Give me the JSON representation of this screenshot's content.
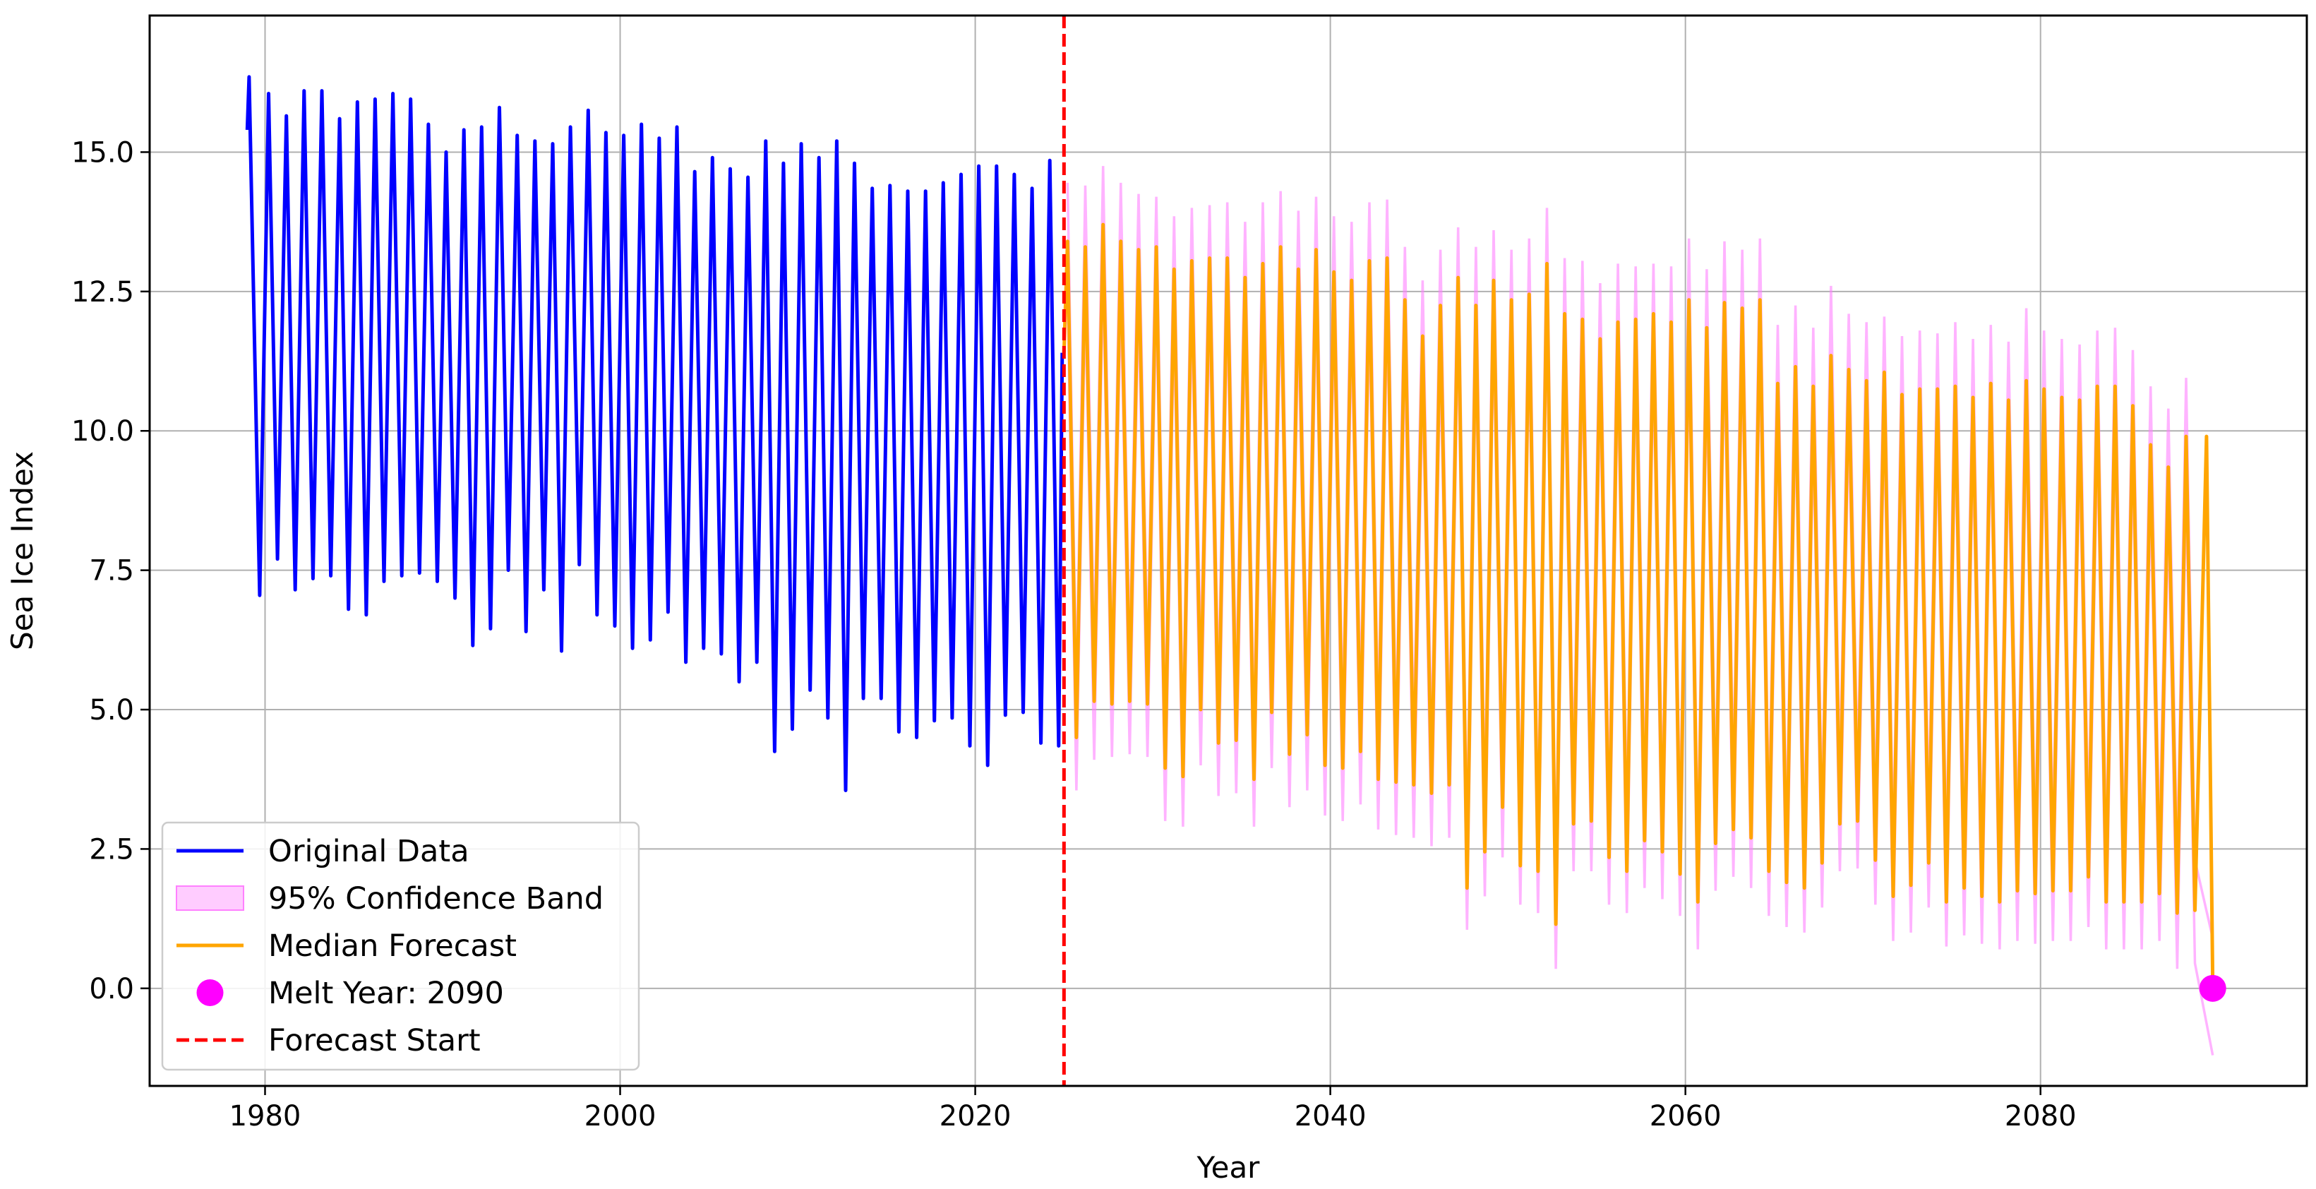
{
  "chart_data": {
    "type": "line",
    "xlabel": "Year",
    "ylabel": "Sea Ice Index",
    "xlim": [
      1973.5,
      2095
    ],
    "ylim": [
      -1.75,
      17.45
    ],
    "grid": true,
    "legend_position": "lower-left",
    "x_ticks": [
      1980,
      2000,
      2020,
      2040,
      2060,
      2080
    ],
    "x_tick_labels": [
      "1980",
      "2000",
      "2020",
      "2040",
      "2060",
      "2080"
    ],
    "y_ticks": [
      0.0,
      2.5,
      5.0,
      7.5,
      10.0,
      12.5,
      15.0
    ],
    "y_tick_labels": [
      "0.0",
      "2.5",
      "5.0",
      "7.5",
      "10.0",
      "12.5",
      "15.0"
    ],
    "colors": {
      "original": "#0000ff",
      "forecast": "#ffa500",
      "band": "#ff80ff",
      "melt": "#ff00ff",
      "forecast_start": "#ff0000"
    },
    "legend": [
      {
        "label": "Original Data",
        "kind": "line",
        "color": "#0000ff"
      },
      {
        "label": "95% Confidence Band",
        "kind": "patch",
        "color": "#ff80ff"
      },
      {
        "label": "Median Forecast",
        "kind": "line",
        "color": "#ffa500"
      },
      {
        "label": "Melt Year: 2090",
        "kind": "marker",
        "color": "#ff00ff"
      },
      {
        "label": "Forecast Start",
        "kind": "dashed",
        "color": "#ff0000"
      }
    ],
    "forecast_start_x": 2025.0,
    "melt_point": {
      "x": 2089.7,
      "y": 0.0
    },
    "series": [
      {
        "name": "Original Data",
        "annual_extremes": {
          "years": [
            1979,
            1980,
            1981,
            1982,
            1983,
            1984,
            1985,
            1986,
            1987,
            1988,
            1989,
            1990,
            1991,
            1992,
            1993,
            1994,
            1995,
            1996,
            1997,
            1998,
            1999,
            2000,
            2001,
            2002,
            2003,
            2004,
            2005,
            2006,
            2007,
            2008,
            2009,
            2010,
            2011,
            2012,
            2013,
            2014,
            2015,
            2016,
            2017,
            2018,
            2019,
            2020,
            2021,
            2022,
            2023,
            2024
          ],
          "max": [
            16.35,
            16.05,
            15.65,
            16.1,
            16.1,
            15.6,
            15.9,
            15.95,
            16.05,
            15.95,
            15.5,
            15.0,
            15.4,
            15.45,
            15.8,
            15.3,
            15.2,
            15.15,
            15.45,
            15.75,
            15.35,
            15.3,
            15.5,
            15.25,
            15.45,
            14.65,
            14.9,
            14.7,
            14.55,
            15.2,
            14.8,
            15.15,
            14.9,
            15.2,
            14.8,
            14.35,
            14.4,
            14.3,
            14.3,
            14.45,
            14.6,
            14.75,
            14.75,
            14.6,
            14.35,
            14.85
          ],
          "min": [
            7.05,
            7.7,
            7.15,
            7.35,
            7.4,
            6.8,
            6.7,
            7.3,
            7.4,
            7.45,
            7.3,
            7.0,
            6.15,
            6.45,
            7.5,
            6.4,
            7.15,
            6.05,
            7.6,
            6.7,
            6.5,
            6.1,
            6.25,
            6.75,
            5.85,
            6.1,
            6.0,
            5.5,
            5.85,
            4.25,
            4.65,
            5.35,
            4.85,
            3.55,
            5.2,
            5.2,
            4.6,
            4.5,
            4.8,
            4.85,
            4.35,
            4.0,
            4.9,
            4.95,
            4.4,
            4.35
          ]
        }
      },
      {
        "name": "Median Forecast",
        "annual_extremes": {
          "years": [
            2026,
            2027,
            2028,
            2029,
            2030,
            2031,
            2032,
            2033,
            2034,
            2035,
            2036,
            2037,
            2038,
            2039,
            2040,
            2041,
            2042,
            2043,
            2044,
            2045,
            2046,
            2047,
            2048,
            2049,
            2050,
            2051,
            2052,
            2053,
            2054,
            2055,
            2056,
            2057,
            2058,
            2059,
            2060,
            2061,
            2062,
            2063,
            2064,
            2065,
            2066,
            2067,
            2068,
            2069,
            2070,
            2071,
            2072,
            2073,
            2074,
            2075,
            2076,
            2077,
            2078,
            2079,
            2080,
            2081,
            2082,
            2083,
            2084,
            2085,
            2086,
            2087,
            2088,
            2089
          ],
          "max": [
            13.4,
            13.3,
            13.7,
            13.4,
            13.25,
            13.3,
            12.9,
            13.05,
            13.1,
            13.1,
            12.75,
            13.0,
            13.3,
            12.9,
            13.25,
            12.85,
            12.7,
            13.05,
            13.1,
            12.35,
            11.7,
            12.25,
            12.75,
            12.25,
            12.7,
            12.35,
            12.45,
            13.0,
            12.1,
            12.0,
            11.65,
            11.95,
            12.0,
            12.1,
            11.95,
            12.35,
            11.85,
            12.3,
            12.2,
            12.35,
            10.85,
            11.15,
            10.8,
            11.35,
            11.1,
            10.9,
            11.05,
            10.65,
            10.75,
            10.75,
            10.8,
            10.6,
            10.85,
            10.55,
            10.9,
            10.75,
            10.6,
            10.55,
            10.8,
            10.8,
            10.45,
            9.75,
            9.35,
            9.9
          ],
          "min": [
            4.5,
            5.15,
            5.1,
            5.15,
            5.1,
            3.95,
            3.8,
            5.0,
            4.4,
            4.45,
            3.75,
            4.95,
            4.2,
            4.55,
            4.0,
            3.95,
            4.25,
            3.75,
            3.7,
            3.65,
            3.5,
            3.65,
            1.8,
            2.45,
            3.25,
            2.2,
            2.1,
            1.15,
            2.95,
            3.0,
            2.35,
            2.1,
            2.65,
            2.45,
            2.05,
            1.55,
            2.6,
            2.85,
            2.7,
            2.1,
            1.9,
            1.8,
            2.25,
            2.95,
            3.0,
            2.3,
            1.65,
            1.85,
            2.25,
            1.55,
            1.8,
            1.65,
            1.55,
            1.75,
            1.7,
            1.75,
            1.75,
            2.0,
            1.55,
            1.55,
            1.55,
            1.7,
            1.35,
            1.4
          ]
        },
        "end_point": {
          "x": 2089.7,
          "y": 0.1
        }
      },
      {
        "name": "95% Confidence Band",
        "annual_extremes": {
          "years": [
            2026,
            2027,
            2028,
            2029,
            2030,
            2031,
            2032,
            2033,
            2034,
            2035,
            2036,
            2037,
            2038,
            2039,
            2040,
            2041,
            2042,
            2043,
            2044,
            2045,
            2046,
            2047,
            2048,
            2049,
            2050,
            2051,
            2052,
            2053,
            2054,
            2055,
            2056,
            2057,
            2058,
            2059,
            2060,
            2061,
            2062,
            2063,
            2064,
            2065,
            2066,
            2067,
            2068,
            2069,
            2070,
            2071,
            2072,
            2073,
            2074,
            2075,
            2076,
            2077,
            2078,
            2079,
            2080,
            2081,
            2082,
            2083,
            2084,
            2085,
            2086,
            2087,
            2088,
            2089
          ],
          "upper": [
            14.45,
            14.4,
            14.75,
            14.45,
            14.25,
            14.2,
            13.85,
            14.0,
            14.05,
            14.1,
            13.75,
            14.1,
            14.3,
            13.95,
            14.2,
            13.85,
            13.75,
            14.1,
            14.15,
            13.3,
            12.7,
            13.25,
            13.65,
            13.3,
            13.6,
            13.25,
            13.45,
            14.0,
            13.1,
            13.05,
            12.65,
            13.0,
            12.95,
            13.0,
            12.95,
            13.45,
            12.9,
            13.4,
            13.25,
            13.45,
            11.9,
            12.25,
            11.85,
            12.6,
            12.1,
            11.95,
            12.05,
            11.7,
            11.8,
            11.75,
            11.95,
            11.65,
            11.9,
            11.6,
            12.2,
            11.8,
            11.65,
            11.55,
            11.8,
            11.85,
            11.45,
            10.8,
            10.4,
            10.95
          ],
          "lower": [
            3.55,
            4.1,
            4.15,
            4.2,
            4.15,
            3.0,
            2.9,
            4.0,
            3.45,
            3.5,
            2.9,
            3.95,
            3.25,
            3.55,
            3.1,
            3.0,
            3.3,
            2.85,
            2.75,
            2.7,
            2.55,
            2.7,
            1.05,
            1.65,
            2.35,
            1.5,
            1.35,
            0.35,
            2.1,
            2.1,
            1.5,
            1.35,
            1.8,
            1.6,
            1.3,
            0.7,
            1.75,
            2.0,
            1.8,
            1.3,
            1.1,
            1.0,
            1.45,
            2.1,
            2.15,
            1.5,
            0.85,
            1.0,
            1.45,
            0.75,
            0.95,
            0.8,
            0.7,
            0.85,
            0.8,
            0.85,
            0.85,
            1.1,
            0.7,
            0.7,
            0.7,
            0.85,
            0.35,
            0.45
          ]
        },
        "end_lower": -1.2
      }
    ]
  }
}
